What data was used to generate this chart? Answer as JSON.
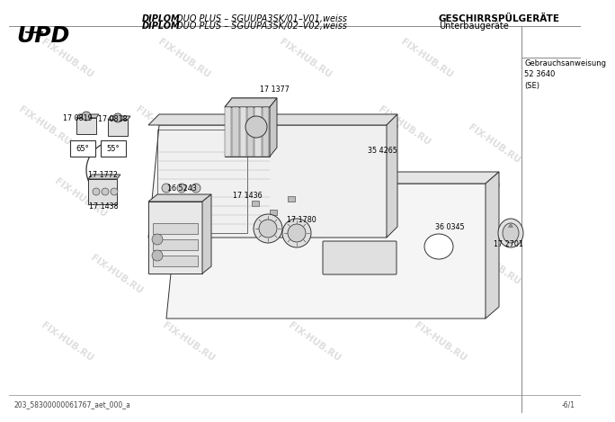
{
  "title_left_bold": "DIPLOM",
  "title_left1": " DUO PLUS – SGUUPA3SK/01–V01,weiss",
  "title_left_bold2": "DIPLOM",
  "title_left2": " DUO PLUS – SGUUPA3SK/02–V02,weiss",
  "title_right1": "GESCHIRRSPÜLGERÄTE",
  "title_right2": "Unterbaugeräte",
  "box_right_title": "Gebrauchsanweisung\n52 3640\n(SE)",
  "footer_left": "203_58300000061767_aet_000_a",
  "footer_right": "-6/1",
  "watermark": "FIX-HUB.RU",
  "bg_color": "#ffffff",
  "line_color": "#333333"
}
